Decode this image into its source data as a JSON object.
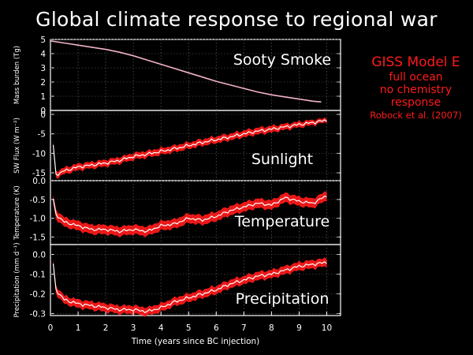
{
  "slide": {
    "title": "Global climate response to regional war"
  },
  "model_box": {
    "line1": "GISS Model E",
    "line2": "full ocean",
    "line3": "no chemistry",
    "line4": "response",
    "citation": "Robock et al. (2007)"
  },
  "colors": {
    "background": "#000000",
    "smoke_line": "#f0b3c7",
    "band": "#ff1a1a",
    "mean_line": "#ffffff",
    "model_text": "#ff1a1a"
  },
  "chart_data": [
    {
      "type": "line",
      "panel_label": "Sooty Smoke",
      "ylabel": "Mass burden (Tg)",
      "ylim": [
        0,
        5
      ],
      "yticks": [
        "0",
        "1",
        "2",
        "3",
        "4",
        "5"
      ],
      "xlim": [
        0,
        10.5
      ],
      "x": [
        0,
        0.5,
        1,
        1.5,
        2,
        2.5,
        3,
        3.5,
        4,
        4.5,
        5,
        5.5,
        6,
        6.5,
        7,
        7.5,
        8,
        8.5,
        9,
        9.5,
        9.8
      ],
      "series": [
        {
          "values": [
            4.9,
            4.75,
            4.6,
            4.45,
            4.3,
            4.1,
            3.85,
            3.55,
            3.25,
            2.95,
            2.65,
            2.35,
            2.05,
            1.8,
            1.55,
            1.3,
            1.1,
            0.95,
            0.8,
            0.65,
            0.6
          ]
        }
      ]
    },
    {
      "type": "area",
      "panel_label": "Sunlight",
      "ylabel": "SW Flux (W m⁻²)",
      "ylim": [
        -17,
        1
      ],
      "yticks": [
        "0",
        "-5",
        "-10",
        "-15"
      ],
      "xlim": [
        0,
        10.5
      ],
      "x": [
        0.1,
        0.2,
        0.5,
        1,
        1.5,
        2,
        2.5,
        3,
        3.5,
        4,
        4.5,
        5,
        5.5,
        6,
        6.5,
        7,
        7.5,
        8,
        8.5,
        9,
        9.5,
        10
      ],
      "series": [
        {
          "name": "mean",
          "values": [
            -8,
            -15.5,
            -14.5,
            -13.5,
            -13,
            -12.5,
            -11.8,
            -10.8,
            -10.2,
            -9.5,
            -8.8,
            -8,
            -7.2,
            -6.5,
            -5.8,
            -5,
            -4.3,
            -3.8,
            -3.2,
            -2.6,
            -2.1,
            -1.5
          ]
        },
        {
          "name": "spread",
          "values": [
            1.0,
            0.8,
            0.8,
            0.8,
            0.8,
            0.8,
            0.8,
            0.8,
            0.8,
            0.8,
            0.8,
            0.8,
            0.8,
            0.8,
            0.8,
            0.8,
            0.8,
            0.8,
            0.7,
            0.7,
            0.6,
            0.5
          ]
        }
      ]
    },
    {
      "type": "area",
      "panel_label": "Temperature",
      "ylabel": "Temperature (K)",
      "ylim": [
        -1.7,
        0
      ],
      "yticks": [
        "0.0",
        "-0.5",
        "-1.0",
        "-1.5"
      ],
      "xlim": [
        0,
        10.5
      ],
      "x": [
        0.1,
        0.2,
        0.5,
        1,
        1.5,
        2,
        2.5,
        3,
        3.5,
        4,
        4.5,
        5,
        5.5,
        6,
        6.5,
        7,
        7.5,
        8,
        8.5,
        9,
        9.5,
        10
      ],
      "series": [
        {
          "name": "mean",
          "values": [
            -0.5,
            -0.9,
            -1.1,
            -1.2,
            -1.3,
            -1.3,
            -1.35,
            -1.3,
            -1.35,
            -1.2,
            -1.15,
            -1.0,
            -1.05,
            -0.95,
            -0.8,
            -0.7,
            -0.6,
            -0.65,
            -0.45,
            -0.55,
            -0.6,
            -0.4
          ]
        },
        {
          "name": "spread",
          "values": [
            0.1,
            0.12,
            0.12,
            0.12,
            0.12,
            0.12,
            0.12,
            0.12,
            0.12,
            0.12,
            0.12,
            0.12,
            0.12,
            0.12,
            0.12,
            0.12,
            0.12,
            0.12,
            0.12,
            0.12,
            0.12,
            0.12
          ]
        }
      ]
    },
    {
      "type": "area",
      "panel_label": "Precipitation",
      "ylabel": "Precipitation (mm d⁻¹)",
      "ylim": [
        -0.31,
        0.05
      ],
      "yticks": [
        "0.0",
        "-0.1",
        "-0.2",
        "-0.3"
      ],
      "xlabel": "Time (years since BC injection)",
      "xticks": [
        "0",
        "1",
        "2",
        "3",
        "4",
        "5",
        "6",
        "7",
        "8",
        "9",
        "10"
      ],
      "xlim": [
        0,
        10.5
      ],
      "x": [
        0.1,
        0.2,
        0.5,
        1,
        1.5,
        2,
        2.5,
        3,
        3.5,
        4,
        4.5,
        5,
        5.5,
        6,
        6.5,
        7,
        7.5,
        8,
        8.5,
        9,
        9.5,
        10
      ],
      "series": [
        {
          "name": "mean",
          "values": [
            -0.05,
            -0.18,
            -0.23,
            -0.25,
            -0.26,
            -0.27,
            -0.28,
            -0.28,
            -0.29,
            -0.27,
            -0.24,
            -0.22,
            -0.2,
            -0.18,
            -0.15,
            -0.13,
            -0.11,
            -0.1,
            -0.08,
            -0.06,
            -0.05,
            -0.04
          ]
        },
        {
          "name": "spread",
          "values": [
            0.02,
            0.02,
            0.02,
            0.02,
            0.02,
            0.02,
            0.02,
            0.02,
            0.02,
            0.02,
            0.02,
            0.02,
            0.02,
            0.02,
            0.02,
            0.02,
            0.02,
            0.02,
            0.02,
            0.02,
            0.02,
            0.02
          ]
        }
      ]
    }
  ]
}
